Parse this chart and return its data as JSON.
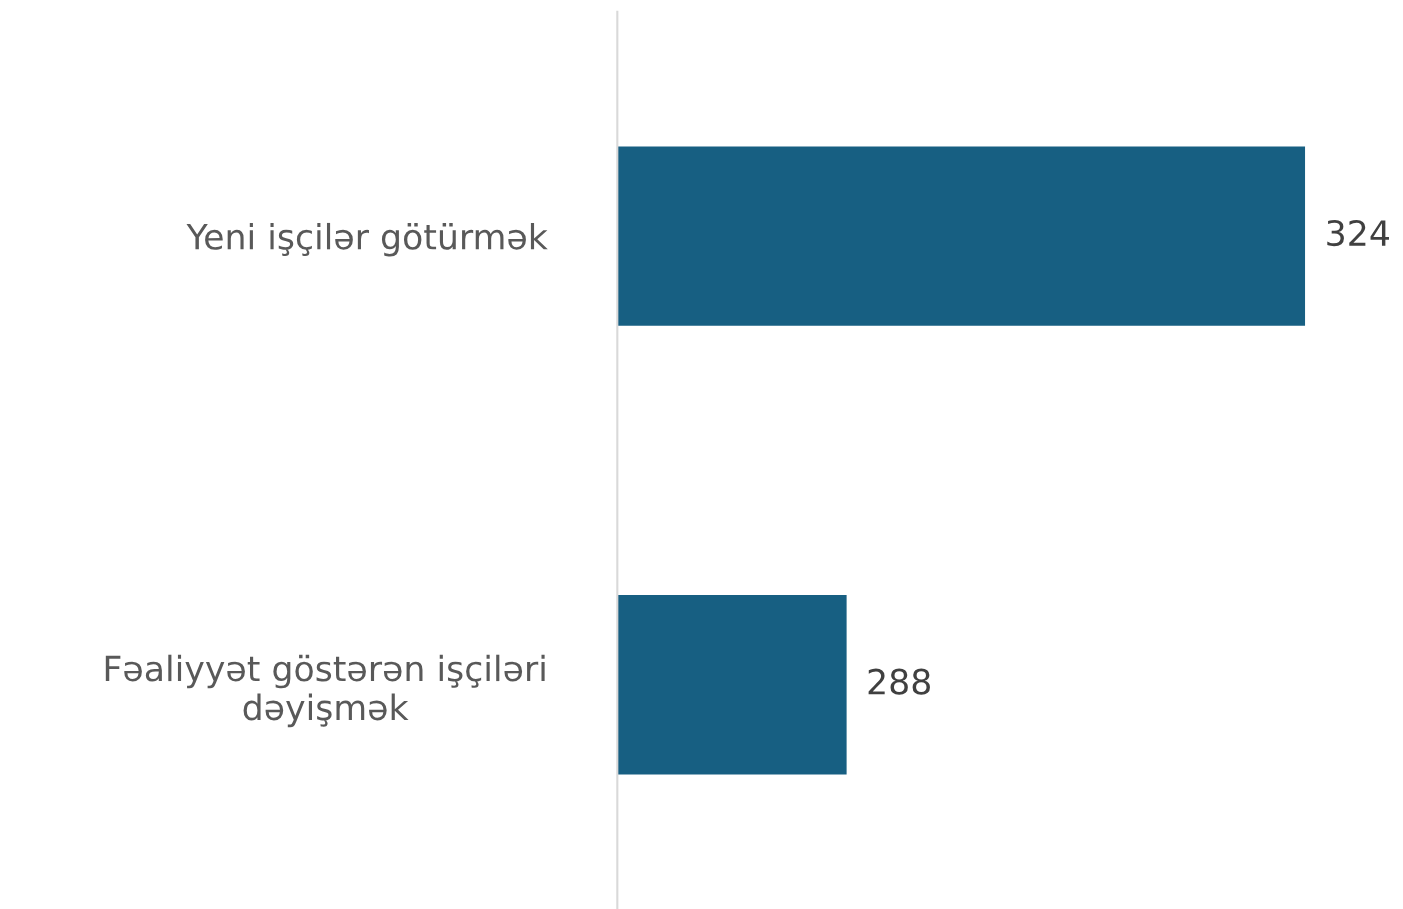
{
  "chart_data": {
    "type": "bar",
    "orientation": "horizontal",
    "categories": [
      "Yeni işçilər götürmək",
      "Fəaliyyət göstərən işçiləri\ndəyişmək"
    ],
    "values": [
      324,
      288
    ],
    "color": "#175f82",
    "xlim": [
      270,
      324
    ],
    "tick_labels": "y",
    "data_labels": true,
    "grid": false,
    "legend": false
  }
}
